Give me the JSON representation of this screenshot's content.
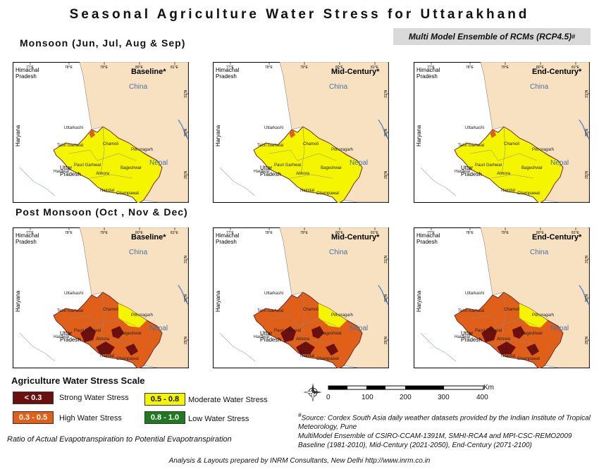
{
  "title": "Seasonal Agriculture Water Stress for Uttarakhand",
  "ensemble": {
    "text": "Multi Model Ensemble of RCMs (RCP4.5)",
    "mark": "#"
  },
  "sections": {
    "monsoon": "Monsoon (Jun, Jul, Aug & Sep)",
    "post_monsoon": "Post Monsoon (Oct , Nov & Dec)"
  },
  "period_labels": [
    "Baseline*",
    "Mid-Century*",
    "End-Century*"
  ],
  "map_text": {
    "himachal": [
      "Himachal",
      "Pradesh"
    ],
    "china": "China",
    "nepal": "Nepal",
    "haryana": "Haryana",
    "uttar": [
      "Uttar",
      "Pradesh"
    ],
    "districts": [
      "Uttarkashi",
      "Tehri Garhwal",
      "Chamoli",
      "Pithoragarh",
      "Bageshwar",
      "Almora",
      "Pauri Garhwal",
      "Hardwar",
      "Nainital",
      "Champawat",
      "Rudraprayag",
      "Dehradun",
      "Udham Singh Nagar"
    ],
    "lon_ticks": [
      "77°E",
      "78°E",
      "79°E",
      "80°E",
      "81°E"
    ],
    "lat_ticks": [
      "31°N",
      "30°N",
      "29°N"
    ]
  },
  "stress_colors": {
    "strong": "#6b0f0f",
    "high": "#e0601a",
    "moderate": "#f5f500",
    "low": "#1f7a1f",
    "neighbour": "#f7e1c0",
    "outside": "#ffffff"
  },
  "maps": [
    {
      "season": "monsoon",
      "period": "Baseline*",
      "dominant": "moderate"
    },
    {
      "season": "monsoon",
      "period": "Mid-Century*",
      "dominant": "moderate"
    },
    {
      "season": "monsoon",
      "period": "End-Century*",
      "dominant": "moderate"
    },
    {
      "season": "post_monsoon",
      "period": "Baseline*",
      "dominant": "high"
    },
    {
      "season": "post_monsoon",
      "period": "Mid-Century*",
      "dominant": "high"
    },
    {
      "season": "post_monsoon",
      "period": "End-Century*",
      "dominant": "high"
    }
  ],
  "legend": {
    "title": "Agriculture Water Stress Scale",
    "items": [
      {
        "range": "< 0.3",
        "label": "Strong Water Stress",
        "color": "#6b0f0f"
      },
      {
        "range": "0.3 - 0.5",
        "label": "High Water Stress",
        "color": "#e0601a"
      },
      {
        "range": "0.5 - 0.8",
        "label": "Moderate Water Stress",
        "color": "#f5f500"
      },
      {
        "range": "0.8 - 1.0",
        "label": "Low Water Stress",
        "color": "#1f7a1f"
      }
    ],
    "ratio_text": "Ratio of Actual Evapotranspiration to Potential Evapotranspiration"
  },
  "scale_bar": {
    "unit": "Km",
    "ticks": [
      "0",
      "100",
      "200",
      "300",
      "400"
    ]
  },
  "source": {
    "mark": "#",
    "lines": [
      "Source: Cordex South Asia daily weather datasets provided by the Indian Institute of Tropical Meteorology, Pune",
      "MultiModel Ensemble of CSIRO-CCAM-1391M, SMHI-RCA4 and MPI-CSC-REMO2009",
      "Baseline (1981-2010), Mid-Century (2021-2050), End-Century (2071-2100)"
    ]
  },
  "footer": "Analysis & Layouts prepared by INRM Consultants, New Delhi http://www.inrm.co.in"
}
